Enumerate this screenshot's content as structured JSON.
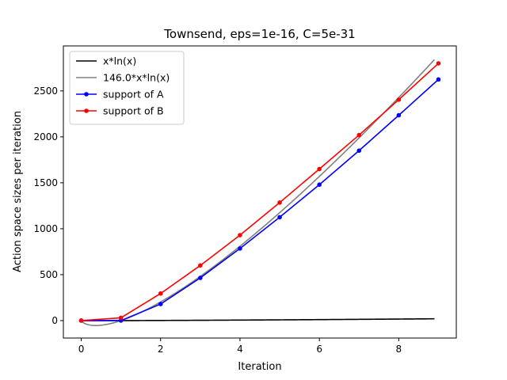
{
  "chart_data": {
    "type": "line",
    "title": "Townsend, eps=1e-16, C=5e-31",
    "xlabel": "Iteration",
    "ylabel": "Action space sizes per iteration",
    "xlim": [
      -0.45,
      9.45
    ],
    "ylim": [
      -190,
      2990
    ],
    "xticks": [
      0,
      2,
      4,
      6,
      8
    ],
    "yticks": [
      0,
      500,
      1000,
      1500,
      2000,
      2500
    ],
    "grid": false,
    "legend_position": "top-left",
    "series": [
      {
        "name": "x*ln(x)",
        "kind": "function",
        "formula": "x*ln(x)",
        "coefficient": 1,
        "x_range": [
          0,
          8.9
        ],
        "color": "#000000",
        "markers": false
      },
      {
        "name": "146.0*x*ln(x)",
        "kind": "function",
        "formula": "146.0*x*ln(x)",
        "coefficient": 146.0,
        "x_range": [
          0,
          8.9
        ],
        "color": "#808080",
        "markers": false
      },
      {
        "name": "support of A",
        "kind": "points",
        "x": [
          0,
          1,
          2,
          3,
          4,
          5,
          6,
          7,
          8,
          9
        ],
        "values": [
          0,
          0,
          180,
          465,
          785,
          1125,
          1480,
          1850,
          2235,
          2625
        ],
        "color": "#0000ff",
        "markers": true
      },
      {
        "name": "support of B",
        "kind": "points",
        "x": [
          0,
          1,
          2,
          3,
          4,
          5,
          6,
          7,
          8,
          9
        ],
        "values": [
          0,
          30,
          295,
          600,
          930,
          1285,
          1650,
          2020,
          2405,
          2800
        ],
        "color": "#ff0000",
        "markers": true
      }
    ]
  }
}
